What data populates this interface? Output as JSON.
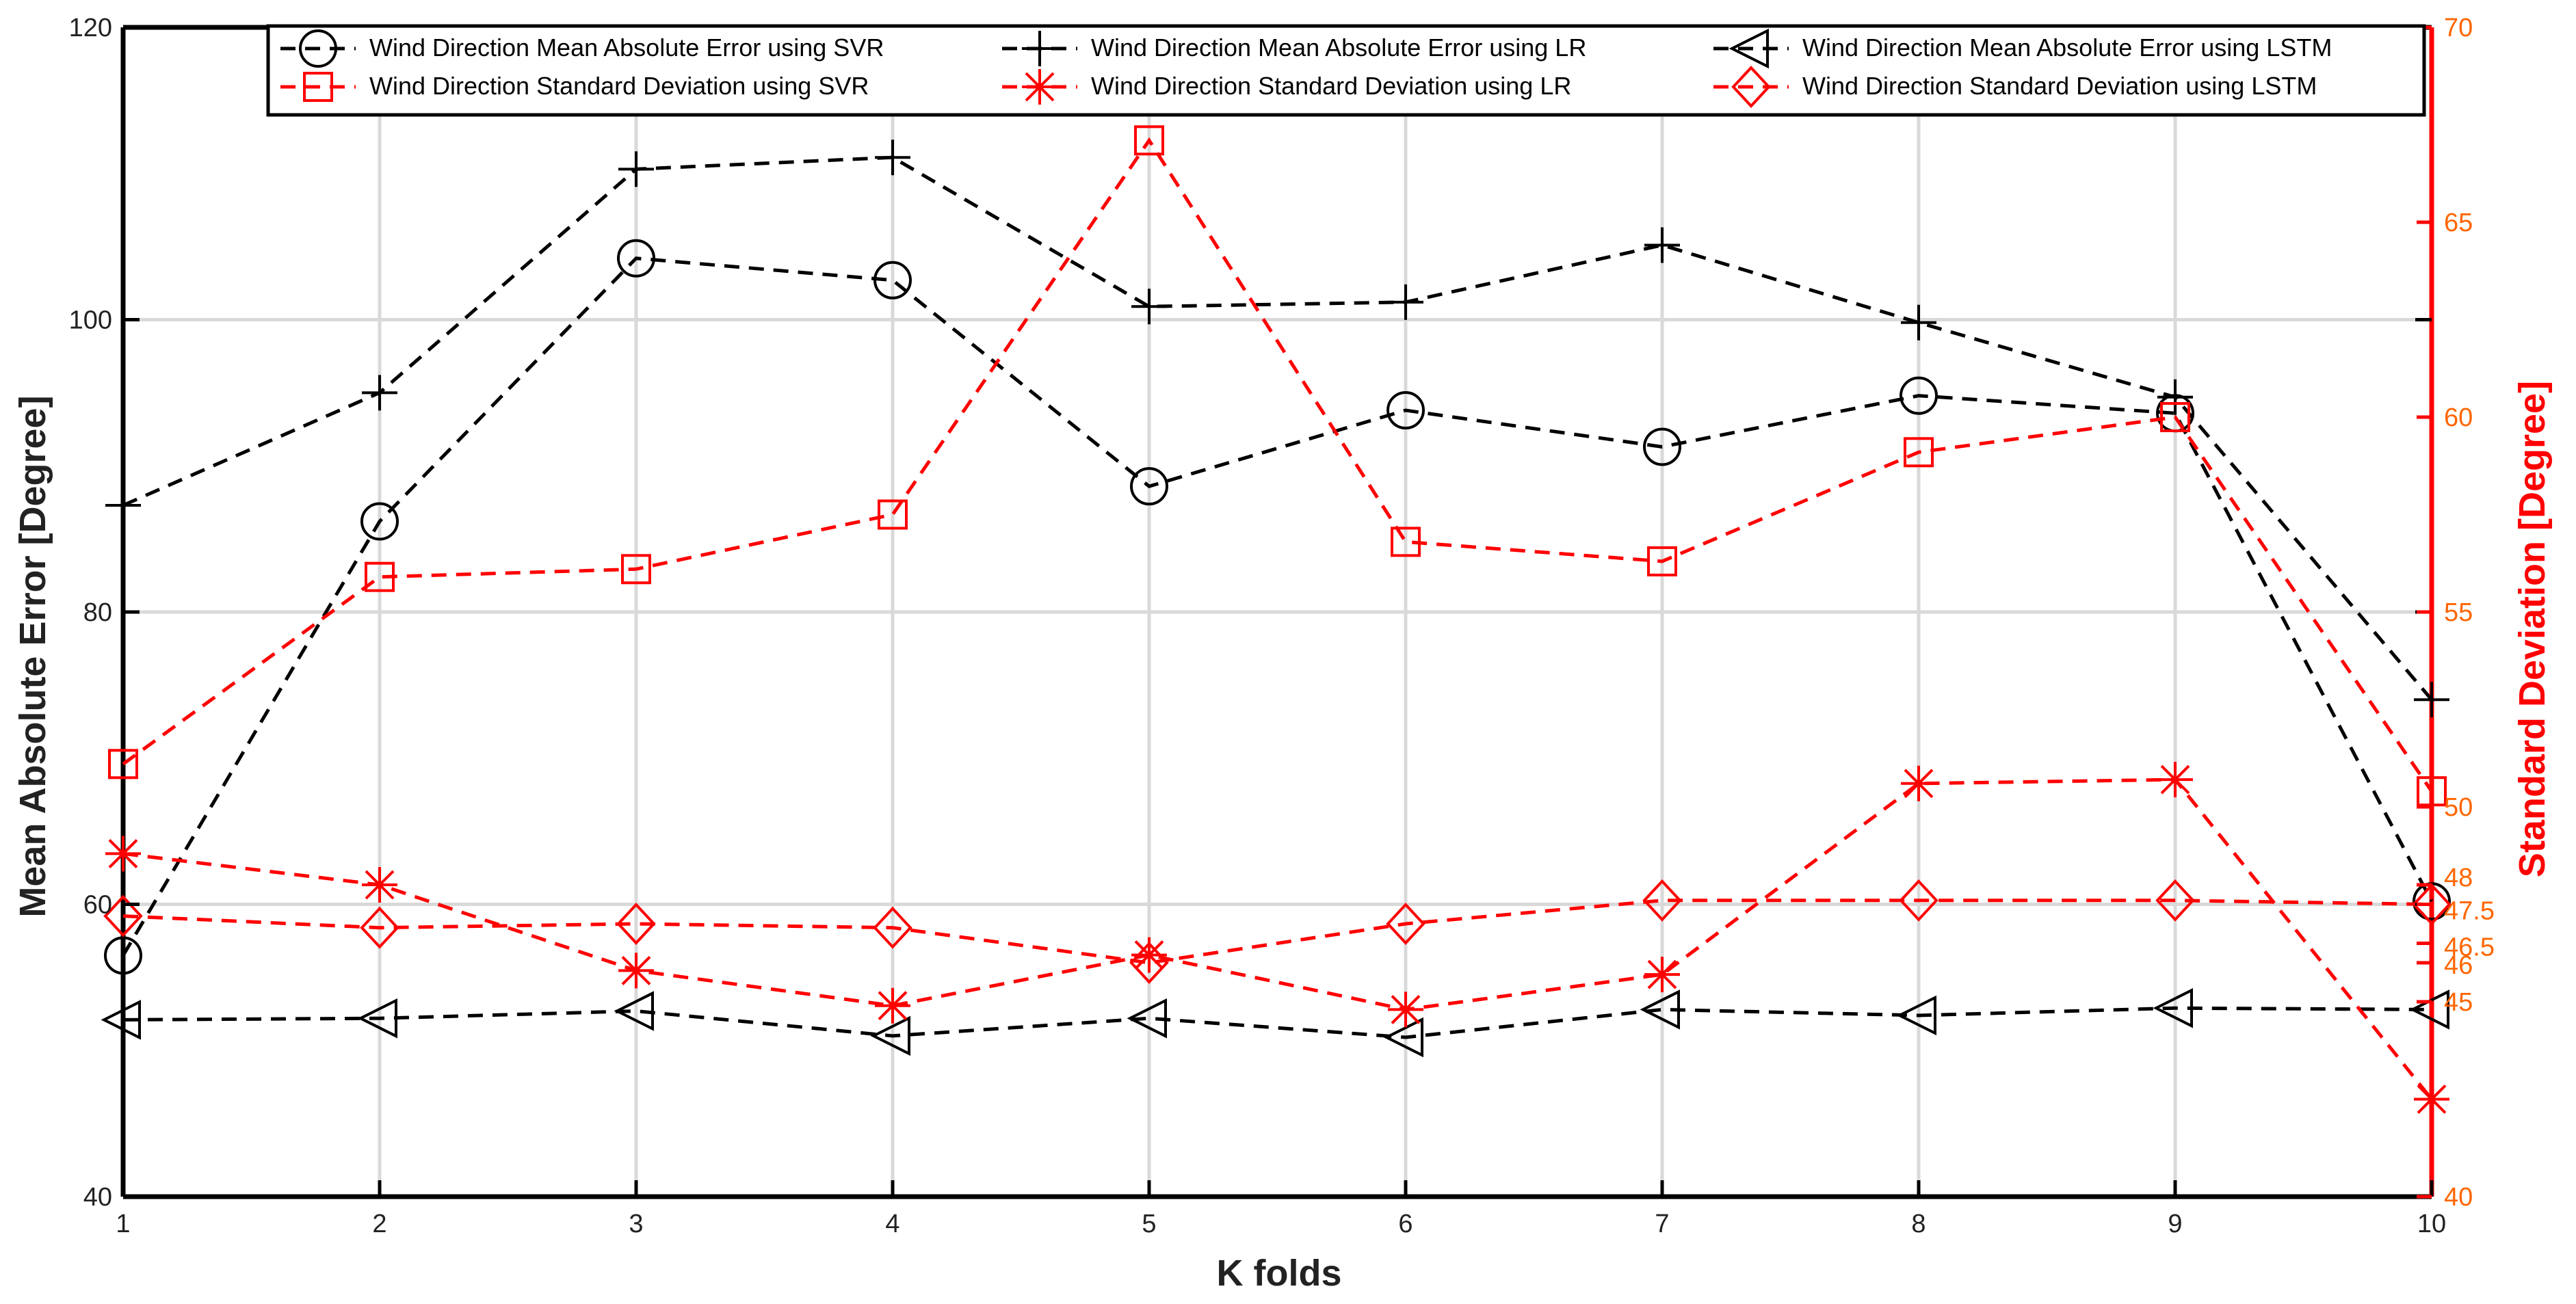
{
  "chart_data": {
    "type": "line",
    "xlabel": "K folds",
    "ylabel_left": "Mean Absolute Error [Degree]",
    "ylabel_right": "Standard Deviation [Degree]",
    "x": [
      1,
      2,
      3,
      4,
      5,
      6,
      7,
      8,
      9,
      10
    ],
    "x_ticks": [
      "1",
      "2",
      "3",
      "4",
      "5",
      "6",
      "7",
      "8",
      "9",
      "10"
    ],
    "ylim_left": [
      40,
      120
    ],
    "ylim_right": [
      40,
      70
    ],
    "y_ticks_left": [
      "40",
      "60",
      "80",
      "100",
      "120"
    ],
    "y_ticks_right": [
      "40",
      "45",
      "46",
      "46.5",
      "47.5",
      "48",
      "50",
      "55",
      "60",
      "65",
      "70"
    ],
    "y_tick_values_right": [
      40,
      45,
      46,
      46.5,
      47.5,
      48,
      50,
      55,
      60,
      65,
      70
    ],
    "grid": true,
    "legend_position": "top-right",
    "series": [
      {
        "name": "Wind Direction Mean Absolute Error using SVR",
        "axis": "left",
        "color": "#000000",
        "marker": "circle",
        "values": [
          56.5,
          86.2,
          104.2,
          102.7,
          88.6,
          93.8,
          91.3,
          94.8,
          93.6,
          60.2
        ]
      },
      {
        "name": "Wind Direction Mean Absolute Error using LR",
        "axis": "left",
        "color": "#000000",
        "marker": "plus",
        "values": [
          87.3,
          95.0,
          110.3,
          111.1,
          100.9,
          101.2,
          105.1,
          99.8,
          94.7,
          74.0
        ]
      },
      {
        "name": "Wind Direction Mean Absolute Error using LSTM",
        "axis": "left",
        "color": "#000000",
        "marker": "triangle-left",
        "values": [
          52.1,
          52.2,
          52.7,
          51.0,
          52.2,
          50.9,
          52.8,
          52.4,
          52.9,
          52.8
        ]
      },
      {
        "name": "Wind Direction Standard Deviation using SVR",
        "axis": "right",
        "color": "#ff0000",
        "marker": "square",
        "values": [
          51.1,
          55.9,
          56.1,
          57.5,
          67.1,
          56.8,
          56.3,
          59.1,
          60.0,
          50.4
        ]
      },
      {
        "name": "Wind Direction Standard Deviation using LR",
        "axis": "right",
        "color": "#ff0000",
        "marker": "asterisk",
        "values": [
          48.8,
          48.0,
          45.8,
          44.9,
          46.2,
          44.8,
          45.7,
          50.6,
          50.7,
          42.5
        ]
      },
      {
        "name": "Wind Direction Standard Deviation using LSTM",
        "axis": "right",
        "color": "#ff0000",
        "marker": "diamond",
        "values": [
          47.2,
          46.9,
          47.0,
          46.9,
          46.0,
          47.0,
          47.6,
          47.6,
          47.6,
          47.5
        ]
      }
    ]
  },
  "colors": {
    "left_axis": "#000000",
    "right_axis": "#ff0000",
    "right_tick_text": "#ff6600",
    "grid": "#d9d9d9"
  }
}
